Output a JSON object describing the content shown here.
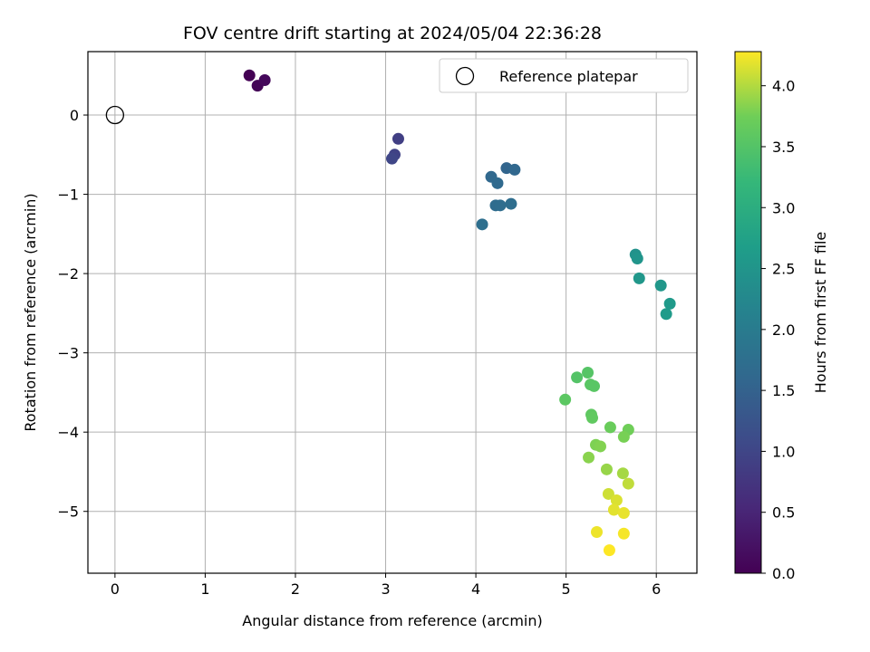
{
  "chart_data": {
    "type": "scatter",
    "title": "FOV centre drift starting at 2024/05/04 22:36:28",
    "xlabel": "Angular distance from reference (arcmin)",
    "ylabel": "Rotation from reference (arcmin)",
    "xlim": [
      -0.3,
      6.45
    ],
    "ylim": [
      -5.78,
      0.8
    ],
    "xticks": [
      0,
      1,
      2,
      3,
      4,
      5,
      6
    ],
    "yticks": [
      0,
      -1,
      -2,
      -3,
      -4,
      -5
    ],
    "ytick_labels": [
      "0",
      "−1",
      "−2",
      "−3",
      "−4",
      "−5"
    ],
    "grid": true,
    "legend": {
      "position": "top-right",
      "entries": [
        "Reference platepar"
      ]
    },
    "reference_point": {
      "x": 0,
      "y": 0
    },
    "colorbar": {
      "label": "Hours from first FF file",
      "range": [
        0,
        4.28
      ],
      "ticks": [
        0.0,
        0.5,
        1.0,
        1.5,
        2.0,
        2.5,
        3.0,
        3.5,
        4.0
      ],
      "tick_labels": [
        "0.0",
        "0.5",
        "1.0",
        "1.5",
        "2.0",
        "2.5",
        "3.0",
        "3.5",
        "4.0"
      ],
      "colormap": "viridis"
    },
    "points": [
      {
        "x": 1.49,
        "y": 0.5,
        "t": 0.0
      },
      {
        "x": 1.58,
        "y": 0.37,
        "t": 0.05
      },
      {
        "x": 1.66,
        "y": 0.44,
        "t": 0.1
      },
      {
        "x": 3.14,
        "y": -0.3,
        "t": 0.9
      },
      {
        "x": 3.1,
        "y": -0.5,
        "t": 0.95
      },
      {
        "x": 3.07,
        "y": -0.55,
        "t": 1.0
      },
      {
        "x": 4.34,
        "y": -0.67,
        "t": 1.55
      },
      {
        "x": 4.43,
        "y": -0.69,
        "t": 1.6
      },
      {
        "x": 4.17,
        "y": -0.78,
        "t": 1.62
      },
      {
        "x": 4.24,
        "y": -0.86,
        "t": 1.65
      },
      {
        "x": 4.22,
        "y": -1.14,
        "t": 1.68
      },
      {
        "x": 4.27,
        "y": -1.14,
        "t": 1.7
      },
      {
        "x": 4.39,
        "y": -1.12,
        "t": 1.72
      },
      {
        "x": 4.07,
        "y": -1.38,
        "t": 1.75
      },
      {
        "x": 5.77,
        "y": -1.76,
        "t": 2.45
      },
      {
        "x": 5.79,
        "y": -1.81,
        "t": 2.5
      },
      {
        "x": 5.81,
        "y": -2.06,
        "t": 2.55
      },
      {
        "x": 6.05,
        "y": -2.15,
        "t": 2.55
      },
      {
        "x": 6.15,
        "y": -2.38,
        "t": 2.6
      },
      {
        "x": 6.11,
        "y": -2.51,
        "t": 2.62
      },
      {
        "x": 5.12,
        "y": -3.31,
        "t": 3.5
      },
      {
        "x": 5.24,
        "y": -3.25,
        "t": 3.52
      },
      {
        "x": 5.27,
        "y": -3.4,
        "t": 3.55
      },
      {
        "x": 5.31,
        "y": -3.42,
        "t": 3.55
      },
      {
        "x": 4.99,
        "y": -3.59,
        "t": 3.58
      },
      {
        "x": 5.28,
        "y": -3.78,
        "t": 3.6
      },
      {
        "x": 5.29,
        "y": -3.82,
        "t": 3.62
      },
      {
        "x": 5.49,
        "y": -3.94,
        "t": 3.7
      },
      {
        "x": 5.69,
        "y": -3.97,
        "t": 3.75
      },
      {
        "x": 5.64,
        "y": -4.06,
        "t": 3.78
      },
      {
        "x": 5.33,
        "y": -4.16,
        "t": 3.8
      },
      {
        "x": 5.38,
        "y": -4.18,
        "t": 3.82
      },
      {
        "x": 5.25,
        "y": -4.32,
        "t": 3.85
      },
      {
        "x": 5.45,
        "y": -4.47,
        "t": 3.9
      },
      {
        "x": 5.63,
        "y": -4.52,
        "t": 3.95
      },
      {
        "x": 5.69,
        "y": -4.65,
        "t": 4.05
      },
      {
        "x": 5.47,
        "y": -4.78,
        "t": 4.1
      },
      {
        "x": 5.56,
        "y": -4.86,
        "t": 4.15
      },
      {
        "x": 5.53,
        "y": -4.98,
        "t": 4.18
      },
      {
        "x": 5.64,
        "y": -5.02,
        "t": 4.2
      },
      {
        "x": 5.34,
        "y": -5.26,
        "t": 4.22
      },
      {
        "x": 5.64,
        "y": -5.28,
        "t": 4.25
      },
      {
        "x": 5.48,
        "y": -5.49,
        "t": 4.28
      }
    ]
  }
}
